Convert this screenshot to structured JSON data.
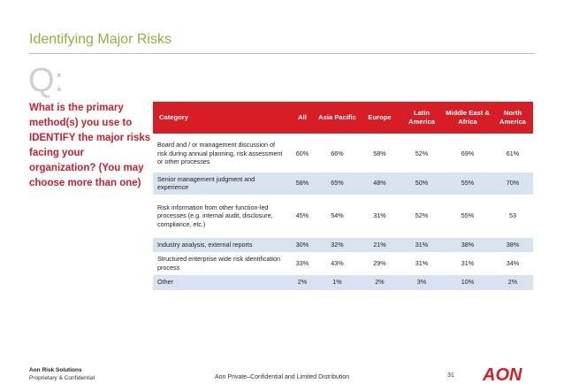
{
  "slide": {
    "title": "Identifying Major Risks",
    "question_mark": "Q:",
    "question": "What is the primary method(s) you use to IDENTIFY the major risks facing your organization? (You may choose more than one)"
  },
  "table": {
    "headers": [
      "Category",
      "All",
      "Asia Pacific",
      "Europe",
      "Latin America",
      "Middle East & Africa",
      "North America"
    ],
    "rows": [
      [
        "Board and / or management discussion of risk during annual planning, risk assessment or other processes",
        "60%",
        "66%",
        "58%",
        "52%",
        "69%",
        "61%"
      ],
      [
        "Senior management judgment and experience",
        "58%",
        "65%",
        "48%",
        "50%",
        "55%",
        "70%"
      ],
      [
        "Risk information from other function-led processes (e.g. internal audit, disclosure, compliance, etc.)",
        "45%",
        "54%",
        "31%",
        "52%",
        "55%",
        "53"
      ],
      [
        "Industry analysis, external reports",
        "30%",
        "32%",
        "21%",
        "31%",
        "38%",
        "38%"
      ],
      [
        "Structured enterprise wide risk identification process",
        "33%",
        "43%",
        "29%",
        "31%",
        "31%",
        "34%"
      ],
      [
        "Other",
        "2%",
        "1%",
        "2%",
        "3%",
        "10%",
        "2%"
      ]
    ]
  },
  "footer": {
    "company": "Aon Risk Solutions",
    "confidential": "Proprietary & Confidential",
    "center": "Aon Private–Confidential and Limited Distribution",
    "page": "31",
    "logo_text": "AON"
  },
  "colors": {
    "title": "#8db33f",
    "accent": "#d71e27",
    "question": "#cc1f2e",
    "row_alt": "#d9e3ef"
  }
}
